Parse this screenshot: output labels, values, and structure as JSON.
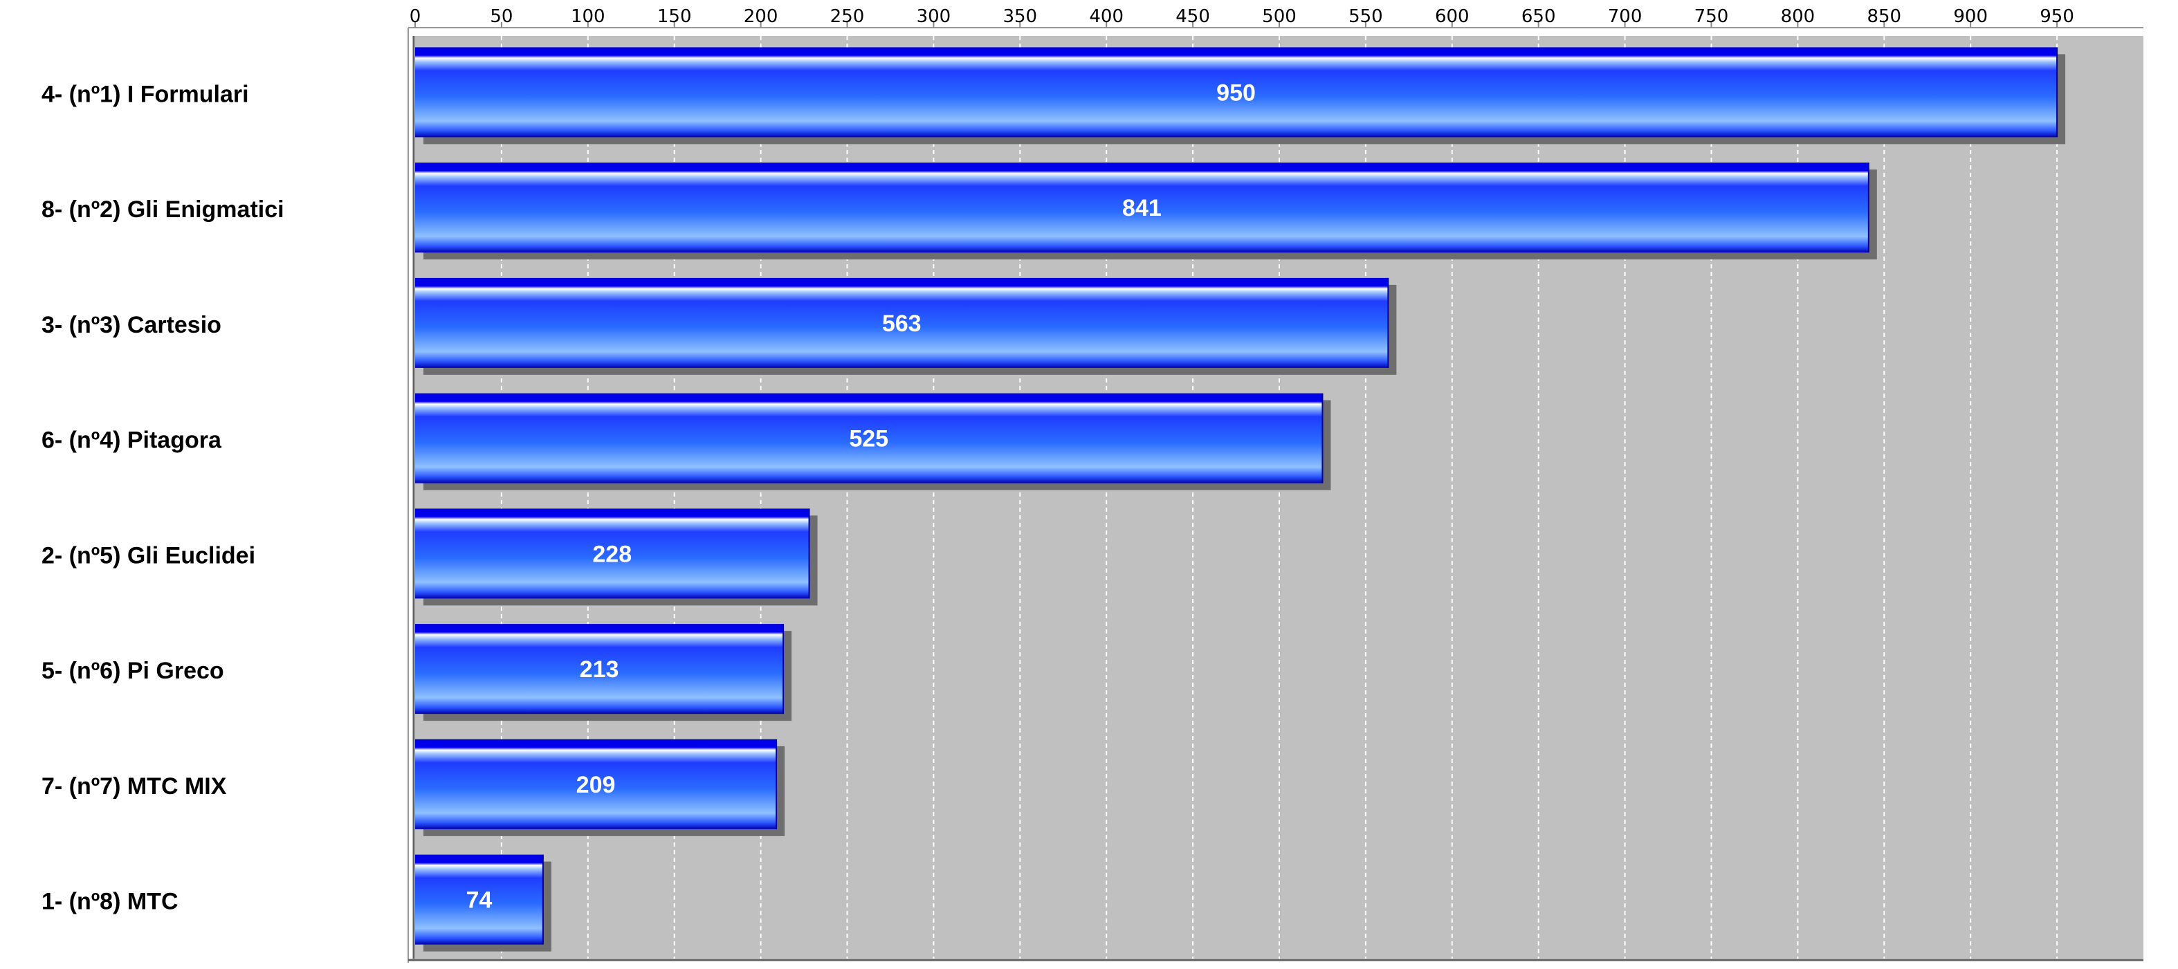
{
  "chart_data": {
    "type": "bar",
    "orientation": "horizontal",
    "categories": [
      "4- (nº1) I Formulari",
      "8- (nº2) Gli Enigmatici",
      "3- (nº3) Cartesio",
      "6- (nº4) Pitagora",
      "2- (nº5) Gli Euclidei",
      "5- (nº6) Pi Greco",
      "7- (nº7) MTC MIX",
      "1- (nº8) MTC"
    ],
    "values": [
      950,
      841,
      563,
      525,
      228,
      213,
      209,
      74
    ],
    "data_labels": [
      "950",
      "841",
      "563",
      "525",
      "228",
      "213",
      "209",
      "74"
    ],
    "x_ticks": [
      "0",
      "50",
      "100",
      "150",
      "200",
      "250",
      "300",
      "350",
      "400",
      "450",
      "500",
      "550",
      "600",
      "650",
      "700",
      "750",
      "800",
      "850",
      "900",
      "950"
    ],
    "xlim": [
      0,
      1000
    ],
    "x_axis_position": "top",
    "grid": true,
    "legend": "none",
    "colors": {
      "plot_background": "#c0c0c0",
      "bar_dark": "#0000e6",
      "bar_light": "#7fb4ff",
      "bar_shadow": "#6e6e6e",
      "grid_line": "#ffffff",
      "value_text": "#ffffff"
    }
  }
}
